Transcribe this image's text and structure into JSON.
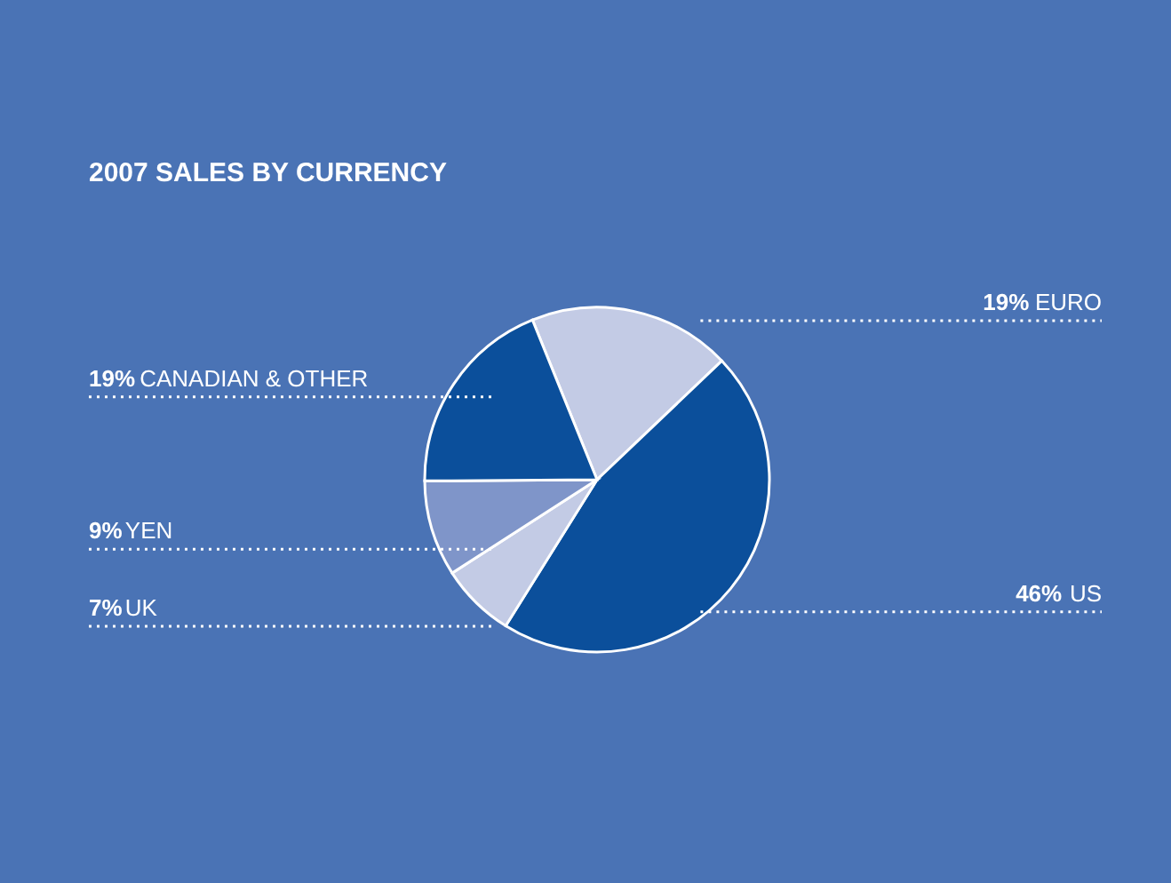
{
  "chart_data": {
    "type": "pie",
    "title": "2007 SALES BY CURRENCY",
    "categories": [
      "EURO",
      "US",
      "UK",
      "YEN",
      "CANADIAN & OTHER"
    ],
    "values": [
      19,
      46,
      7,
      9,
      19
    ],
    "value_labels": [
      "19%",
      "46%",
      "7%",
      "9%",
      "19%"
    ],
    "colors": [
      "#c3cbe5",
      "#0b4f9b",
      "#c3cbe5",
      "#7f95c9",
      "#0b4f9b"
    ],
    "legend": false
  }
}
